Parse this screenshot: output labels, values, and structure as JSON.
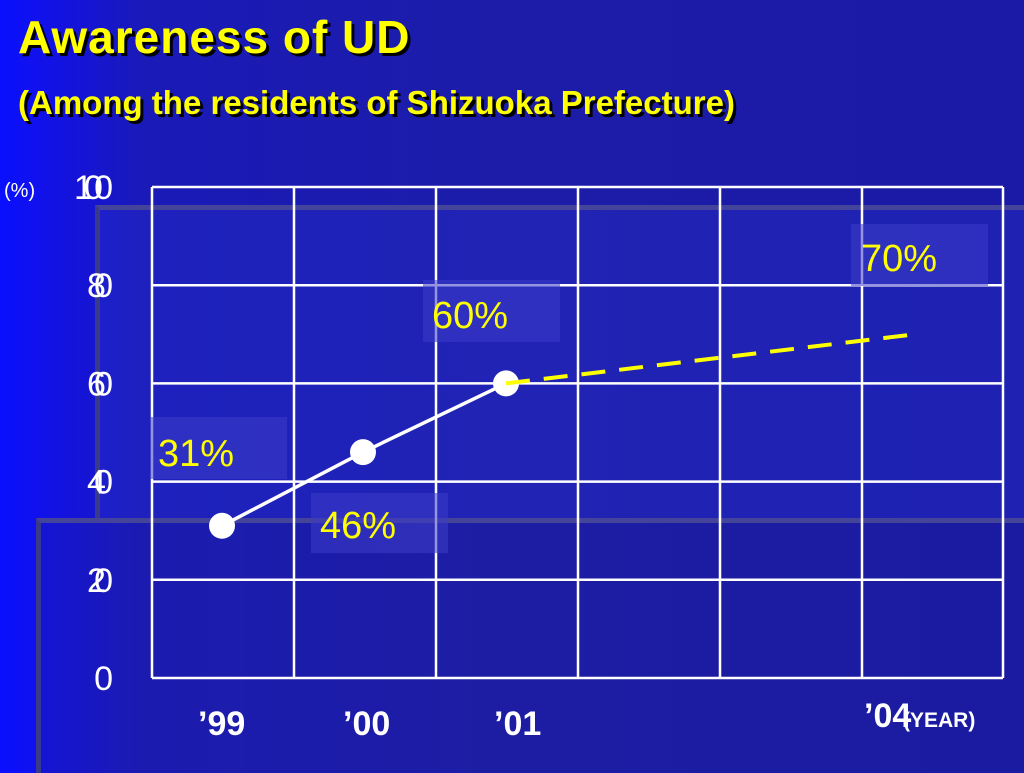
{
  "slide": {
    "title": "Awareness of UD",
    "subtitle": "(Among the residents of Shizuoka Prefecture)"
  },
  "chart_data": {
    "type": "line",
    "title": "Awareness of UD",
    "subtitle": "(Among the residents of Shizuoka Prefecture)",
    "ylabel": "(%)",
    "xlabel": "(YEAR)",
    "ylim": [
      0,
      100
    ],
    "y_ticks": [
      "0",
      "20",
      "40",
      "60",
      "80",
      "100"
    ],
    "x_ticks": [
      "’99",
      "’00",
      "’01",
      "’04"
    ],
    "grid": true,
    "series": [
      {
        "line_style": "solid",
        "color": "#ffffff",
        "marker": "circle",
        "points": [
          {
            "x": "’99",
            "y": 31,
            "label": "31%"
          },
          {
            "x": "’00",
            "y": 46,
            "label": "46%"
          },
          {
            "x": "’01",
            "y": 60,
            "label": "60%"
          }
        ]
      },
      {
        "line_style": "dashed",
        "color": "#ffff00",
        "marker": "none",
        "points": [
          {
            "x": "’01",
            "y": 60
          },
          {
            "x": "’04",
            "y": 70,
            "label": "70%"
          }
        ]
      }
    ],
    "colors": {
      "title": "#ffff00",
      "axis_text": "#ffffff",
      "grid": "#ffffff",
      "data_label_text": "#ffff00",
      "projection": "#ffff00"
    }
  }
}
